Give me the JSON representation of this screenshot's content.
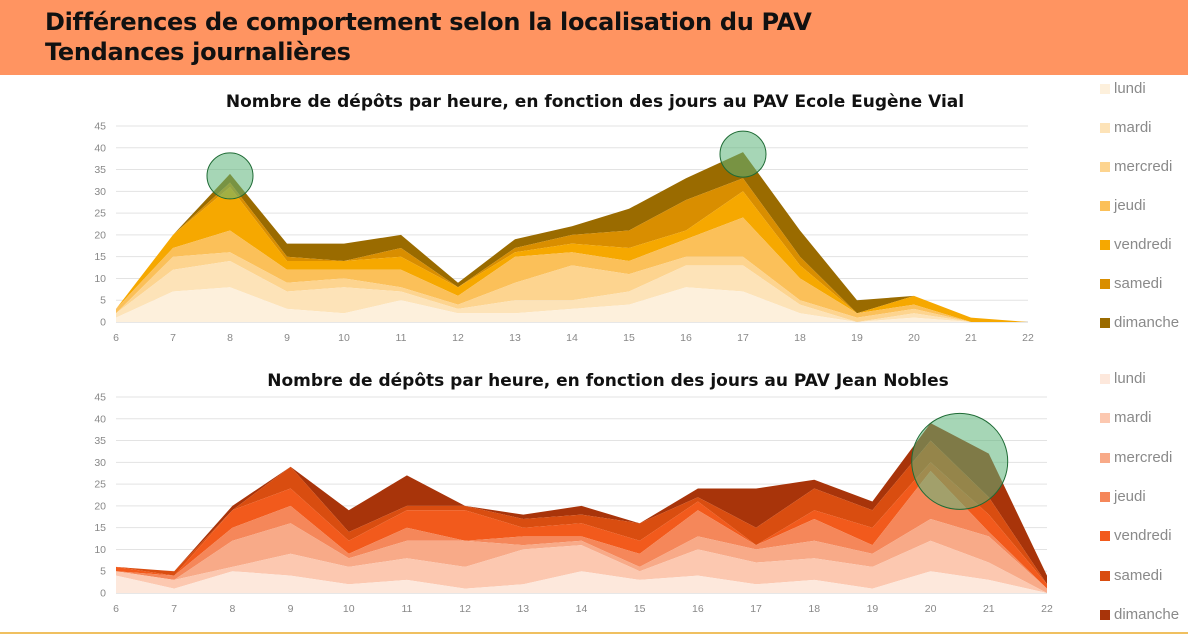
{
  "header": {
    "line1": "Différences de comportement selon la localisation du PAV",
    "line2": "Tendances journalières"
  },
  "chart_data": [
    {
      "type": "area",
      "stacked": true,
      "title": "Nombre de dépôts par heure, en fonction des jours au PAV Ecole Eugène Vial",
      "x": [
        6,
        7,
        8,
        9,
        10,
        11,
        12,
        13,
        14,
        15,
        16,
        17,
        18,
        19,
        20,
        21,
        22
      ],
      "ylim": [
        0,
        45
      ],
      "yticks": [
        0,
        5,
        10,
        15,
        20,
        25,
        30,
        35,
        40,
        45
      ],
      "grid": true,
      "legend": "right",
      "highlight_circles_at_x": [
        8,
        17
      ],
      "series": [
        {
          "name": "lundi",
          "color": "#fdf0dc",
          "values": [
            1,
            7,
            8,
            3,
            2,
            5,
            2,
            2,
            3,
            4,
            8,
            7,
            2,
            0,
            1,
            0,
            0
          ]
        },
        {
          "name": "mardi",
          "color": "#fde3b8",
          "values": [
            1,
            5,
            6,
            4,
            6,
            2,
            1,
            3,
            2,
            3,
            5,
            6,
            2,
            0,
            1,
            0,
            0
          ]
        },
        {
          "name": "mercredi",
          "color": "#fdd48f",
          "values": [
            0,
            3,
            2,
            2,
            2,
            1,
            1,
            4,
            8,
            4,
            2,
            2,
            1,
            1,
            1,
            0,
            0
          ]
        },
        {
          "name": "jeudi",
          "color": "#fbc059",
          "values": [
            1,
            2,
            5,
            3,
            2,
            4,
            2,
            6,
            3,
            3,
            4,
            9,
            5,
            1,
            1,
            0,
            0
          ]
        },
        {
          "name": "vendredi",
          "color": "#f6a800",
          "values": [
            0,
            3,
            10,
            2,
            2,
            3,
            2,
            1,
            2,
            3,
            2,
            6,
            3,
            0,
            2,
            1,
            0
          ]
        },
        {
          "name": "samedi",
          "color": "#d98e00",
          "values": [
            0,
            0,
            1,
            1,
            0,
            2,
            0,
            1,
            2,
            4,
            7,
            3,
            2,
            0,
            0,
            0,
            0
          ]
        },
        {
          "name": "dimanche",
          "color": "#9a6b00",
          "values": [
            0,
            0,
            2,
            3,
            4,
            3,
            1,
            2,
            2,
            5,
            5,
            6,
            6,
            3,
            0,
            0,
            0
          ]
        }
      ]
    },
    {
      "type": "area",
      "stacked": true,
      "title": "Nombre de dépôts par heure, en fonction des jours au PAV Jean Nobles",
      "x": [
        6,
        7,
        8,
        9,
        10,
        11,
        12,
        13,
        14,
        15,
        16,
        17,
        18,
        19,
        20,
        21,
        22
      ],
      "ylim": [
        0,
        45
      ],
      "yticks": [
        0,
        5,
        10,
        15,
        20,
        25,
        30,
        35,
        40,
        45
      ],
      "grid": true,
      "legend": "right",
      "highlight_circles_at_x": [
        20.5
      ],
      "series": [
        {
          "name": "lundi",
          "color": "#fde8dc",
          "values": [
            4,
            1,
            5,
            4,
            2,
            3,
            1,
            2,
            5,
            3,
            4,
            2,
            3,
            1,
            5,
            3,
            0
          ]
        },
        {
          "name": "mardi",
          "color": "#fcc8b0",
          "values": [
            1,
            2,
            1,
            5,
            4,
            5,
            5,
            8,
            6,
            2,
            6,
            5,
            5,
            5,
            7,
            4,
            0
          ]
        },
        {
          "name": "mercredi",
          "color": "#f8aa88",
          "values": [
            0,
            0,
            6,
            7,
            2,
            4,
            6,
            1,
            1,
            1,
            3,
            3,
            4,
            3,
            5,
            6,
            1
          ]
        },
        {
          "name": "jeudi",
          "color": "#f5875a",
          "values": [
            0,
            1,
            3,
            4,
            1,
            3,
            0,
            2,
            1,
            3,
            6,
            1,
            5,
            2,
            11,
            1,
            0
          ]
        },
        {
          "name": "vendredi",
          "color": "#f25a1c",
          "values": [
            1,
            0,
            4,
            4,
            3,
            4,
            7,
            2,
            3,
            3,
            2,
            0,
            2,
            4,
            2,
            4,
            1
          ]
        },
        {
          "name": "samedi",
          "color": "#d94d10",
          "values": [
            0,
            1,
            0,
            5,
            2,
            1,
            1,
            2,
            2,
            4,
            1,
            4,
            5,
            4,
            5,
            4,
            0
          ]
        },
        {
          "name": "dimanche",
          "color": "#a8340a",
          "values": [
            0,
            0,
            1,
            0,
            5,
            7,
            0,
            1,
            2,
            0,
            2,
            9,
            2,
            2,
            4,
            10,
            2
          ]
        }
      ]
    }
  ]
}
